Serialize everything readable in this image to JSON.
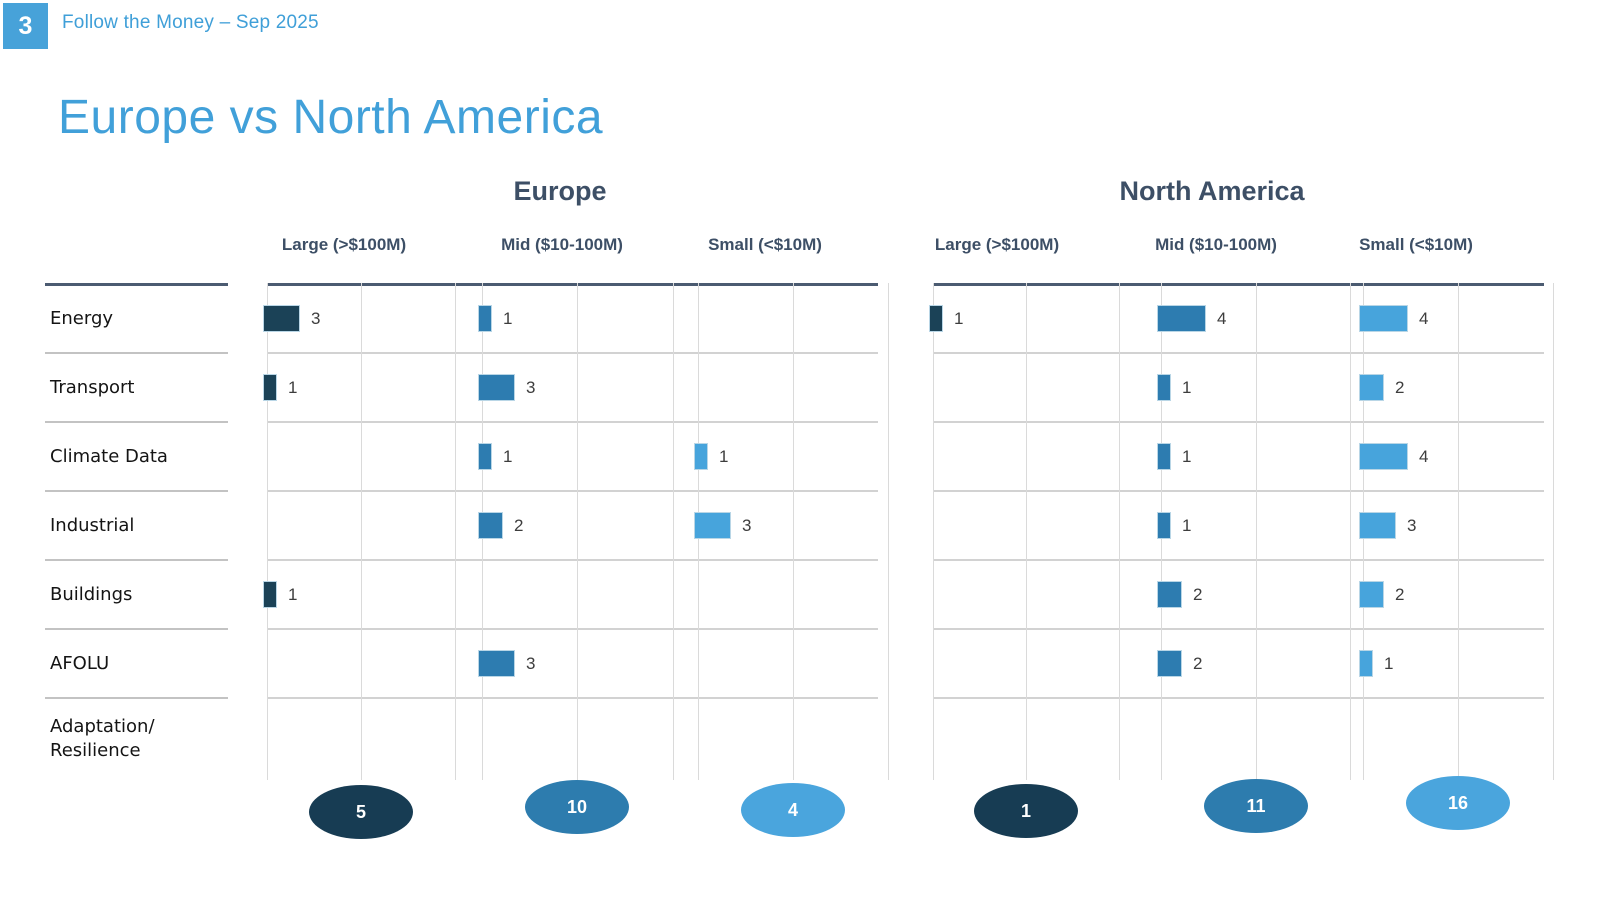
{
  "page": {
    "number": "3",
    "deck_title": "Follow the Money – Sep 2025",
    "slide_title": "Europe vs North America"
  },
  "colors": {
    "accent_blue": "#47a2d9",
    "title_blue": "#41a0d9",
    "heading_slate": "#3d4f66",
    "bar_large": "#1b4257",
    "bar_mid": "#2d7cb0",
    "bar_small": "#47a4dc",
    "badge_large": "#173c53",
    "badge_mid": "#2d7cae",
    "badge_small": "#4aa5dd"
  },
  "categories": [
    "Energy",
    "Transport",
    "Climate Data",
    "Industrial",
    "Buildings",
    "AFOLU",
    "Adaptation/Resilience"
  ],
  "size_columns": [
    "Large (>$100M)",
    "Mid ($10-100M)",
    "Small (<$10M)"
  ],
  "chart_data": [
    {
      "type": "bar",
      "orientation": "horizontal",
      "region": "Europe",
      "categories": [
        "Energy",
        "Transport",
        "Climate Data",
        "Industrial",
        "Buildings",
        "AFOLU",
        "Adaptation/Resilience"
      ],
      "series": [
        {
          "name": "Large (>$100M)",
          "values": [
            3,
            1,
            0,
            0,
            1,
            0,
            0
          ]
        },
        {
          "name": "Mid ($10-100M)",
          "values": [
            1,
            3,
            1,
            2,
            0,
            3,
            0
          ]
        },
        {
          "name": "Small (<$10M)",
          "values": [
            0,
            0,
            1,
            3,
            0,
            0,
            0
          ]
        }
      ],
      "totals": [
        5,
        10,
        4
      ],
      "value_labels": true,
      "grid": true
    },
    {
      "type": "bar",
      "orientation": "horizontal",
      "region": "North America",
      "categories": [
        "Energy",
        "Transport",
        "Climate Data",
        "Industrial",
        "Buildings",
        "AFOLU",
        "Adaptation/Resilience"
      ],
      "series": [
        {
          "name": "Large (>$100M)",
          "values": [
            1,
            0,
            0,
            0,
            0,
            0,
            0
          ]
        },
        {
          "name": "Mid ($10-100M)",
          "values": [
            4,
            1,
            1,
            1,
            2,
            2,
            0
          ]
        },
        {
          "name": "Small (<$10M)",
          "values": [
            4,
            2,
            4,
            3,
            2,
            1,
            0
          ]
        }
      ],
      "totals": [
        1,
        11,
        16
      ],
      "value_labels": true,
      "grid": true
    }
  ]
}
